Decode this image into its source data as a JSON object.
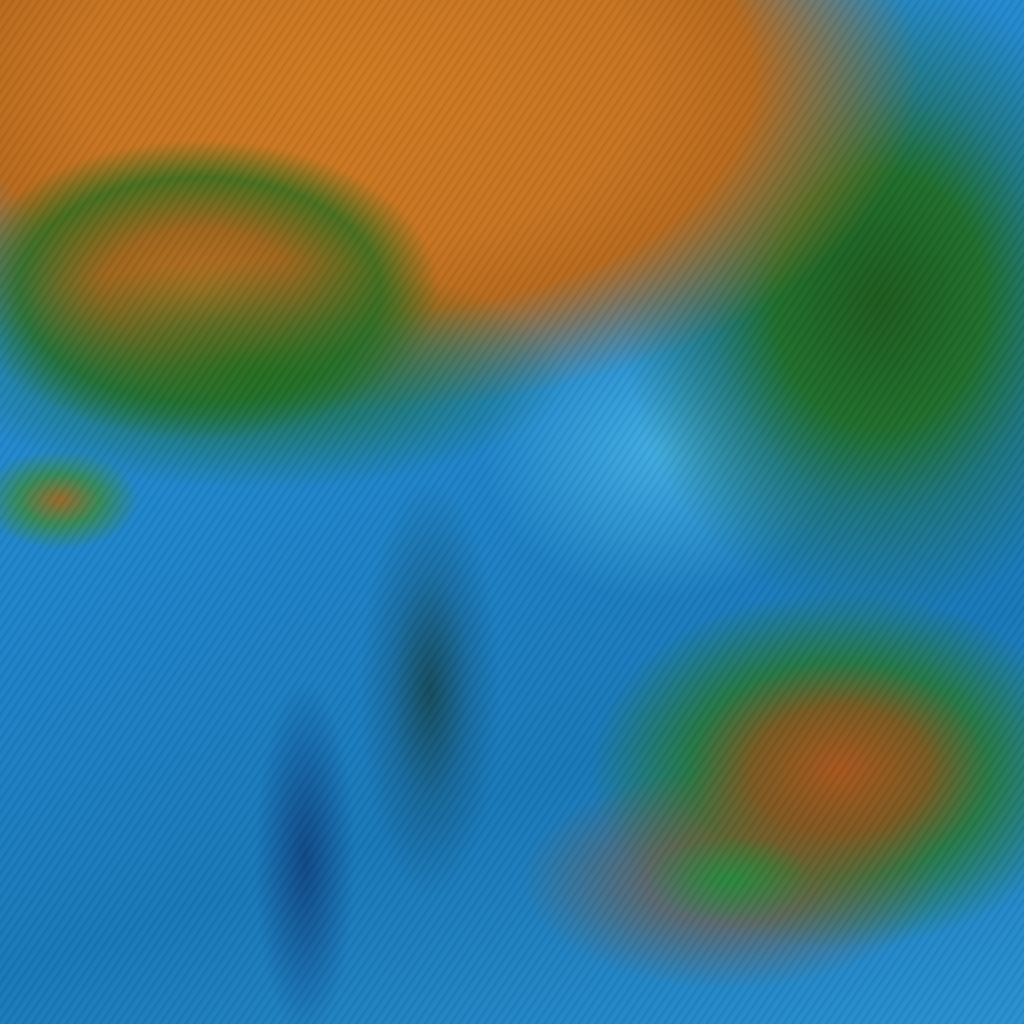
{
  "image": {
    "colors": {
      "land_orange": "#cf7a20",
      "vegetation_green": "#1f6e2a",
      "cloud_blue": "#2a8fd0",
      "deep_blue": "#1878b8",
      "bottom_orange": "#a8561c"
    }
  }
}
